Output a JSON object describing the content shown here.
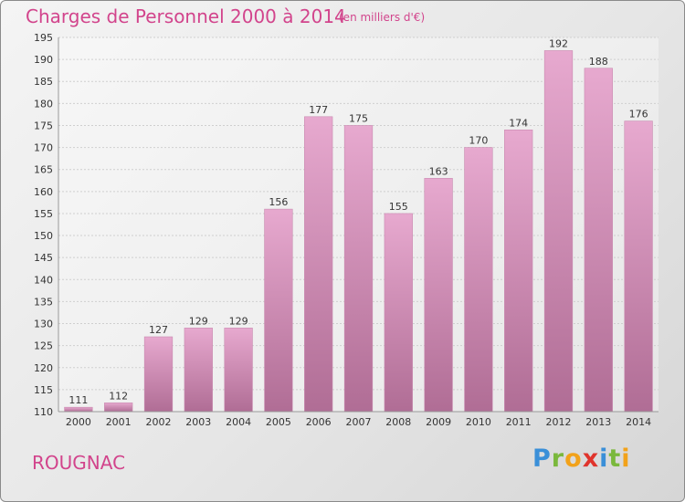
{
  "header": {
    "title": "Charges de Personnel 2000 à 2014",
    "subtitle": "(en milliers d'€)"
  },
  "footer": {
    "place": "ROUGNAC",
    "logo_letters": [
      "P",
      "r",
      "o",
      "x",
      "i",
      "t",
      "i"
    ],
    "logo_colors": [
      "#3a8fd8",
      "#7ab83c",
      "#f2a21a",
      "#e0342c",
      "#3a8fd8",
      "#7ab83c",
      "#f2a21a"
    ]
  },
  "colors": {
    "bar_top": "#e7a9cf",
    "bar_bottom": "#b06d95",
    "title": "#d2448c"
  },
  "chart_data": {
    "type": "bar",
    "categories": [
      "2000",
      "2001",
      "2002",
      "2003",
      "2004",
      "2005",
      "2006",
      "2007",
      "2008",
      "2009",
      "2010",
      "2011",
      "2012",
      "2013",
      "2014"
    ],
    "values": [
      111,
      112,
      127,
      129,
      129,
      156,
      177,
      175,
      155,
      163,
      170,
      174,
      192,
      188,
      176
    ],
    "ylim": [
      110,
      195
    ],
    "yticks": [
      110,
      115,
      120,
      125,
      130,
      135,
      140,
      145,
      150,
      155,
      160,
      165,
      170,
      175,
      180,
      185,
      190,
      195
    ],
    "grid": true
  }
}
